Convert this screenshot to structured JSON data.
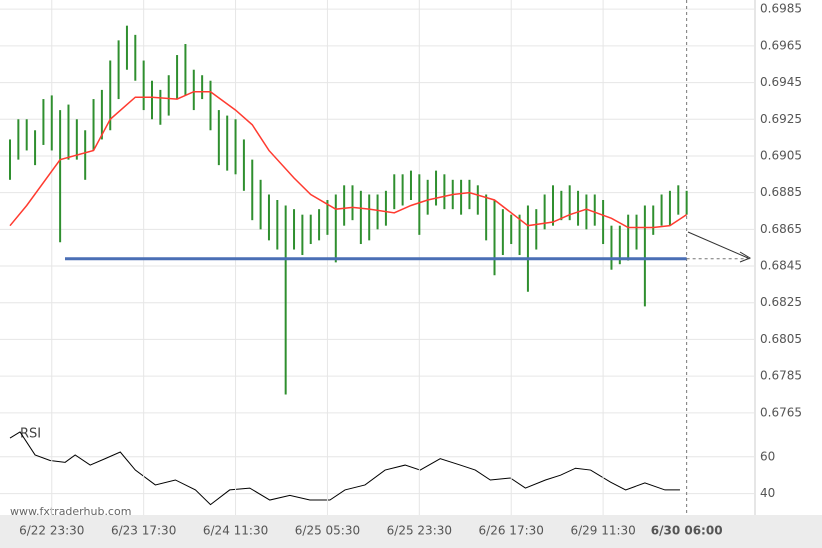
{
  "chart_data": [
    {
      "type": "range",
      "highs": [
        0.6914,
        0.6925,
        0.6925,
        0.6919,
        0.6936,
        0.6938,
        0.693,
        0.6933,
        0.6925,
        0.6919,
        0.6936,
        0.6941,
        0.6957,
        0.6968,
        0.6976,
        0.6971,
        0.6957,
        0.6946,
        0.6941,
        0.6949,
        0.696,
        0.6966,
        0.6952,
        0.6949,
        0.6946,
        0.693,
        0.6927,
        0.6925,
        0.6914,
        0.6903,
        0.6892,
        0.6884,
        0.6881,
        0.6878,
        0.6876,
        0.6873,
        0.6873,
        0.6876,
        0.6881,
        0.6884,
        0.6889,
        0.6889,
        0.6886,
        0.6884,
        0.6884,
        0.6886,
        0.6895,
        0.6895,
        0.6897,
        0.6895,
        0.6892,
        0.6897,
        0.6895,
        0.6892,
        0.6892,
        0.6892,
        0.6889,
        0.6884,
        0.6881,
        0.6876,
        0.6873,
        0.6873,
        0.6878,
        0.6876,
        0.6884,
        0.6889,
        0.6886,
        0.6889,
        0.6886,
        0.6884,
        0.6884,
        0.6881,
        0.6867,
        0.6867,
        0.6873,
        0.6873,
        0.6878,
        0.6878,
        0.6884,
        0.6886,
        0.6889,
        0.6886
      ],
      "lows": [
        0.6892,
        0.6903,
        0.6908,
        0.69,
        0.6911,
        0.6908,
        0.6858,
        0.6903,
        0.6903,
        0.6892,
        0.6908,
        0.6914,
        0.6919,
        0.6936,
        0.6952,
        0.6946,
        0.693,
        0.6925,
        0.6922,
        0.6927,
        0.6936,
        0.6938,
        0.693,
        0.6936,
        0.6919,
        0.69,
        0.6897,
        0.6895,
        0.6886,
        0.687,
        0.6865,
        0.6859,
        0.6854,
        0.6775,
        0.6854,
        0.6851,
        0.6857,
        0.6859,
        0.6862,
        0.6847,
        0.6867,
        0.687,
        0.6857,
        0.6859,
        0.6865,
        0.6867,
        0.6876,
        0.6878,
        0.6881,
        0.6862,
        0.6873,
        0.6878,
        0.6876,
        0.6876,
        0.6873,
        0.6876,
        0.6873,
        0.6859,
        0.684,
        0.6851,
        0.6857,
        0.6851,
        0.6831,
        0.6854,
        0.6865,
        0.6867,
        0.687,
        0.687,
        0.6867,
        0.6865,
        0.6867,
        0.6857,
        0.6843,
        0.6846,
        0.6848,
        0.6854,
        0.6823,
        0.6862,
        0.6867,
        0.6867,
        0.6873,
        0.6873
      ],
      "color": "#2f8f2f",
      "ma": {
        "color": "#ff3b30",
        "x": [
          0,
          2,
          6,
          10,
          12,
          15,
          17,
          20,
          22,
          24,
          27,
          29,
          31,
          34,
          36,
          39,
          41,
          43,
          46,
          48,
          50,
          53,
          55,
          58,
          60,
          62,
          65,
          67,
          69,
          72,
          74,
          77,
          79,
          81
        ],
        "values": [
          0.6867,
          0.6878,
          0.6903,
          0.6908,
          0.6925,
          0.6937,
          0.6937,
          0.6936,
          0.694,
          0.694,
          0.693,
          0.6922,
          0.6908,
          0.6893,
          0.6884,
          0.6876,
          0.6877,
          0.6876,
          0.6874,
          0.6878,
          0.6881,
          0.6884,
          0.6885,
          0.6881,
          0.6874,
          0.6867,
          0.6869,
          0.6873,
          0.6876,
          0.6871,
          0.6866,
          0.6866,
          0.6867,
          0.6873
        ]
      },
      "level": {
        "value": 0.6849,
        "color": "#4a6fb5"
      },
      "xlim": [
        0,
        82
      ],
      "xticks": [
        {
          "value": 5,
          "label": "6/22 23:30"
        },
        {
          "value": 16,
          "label": "6/23 17:30"
        },
        {
          "value": 27,
          "label": "6/24 11:30"
        },
        {
          "value": 38,
          "label": "6/25 05:30"
        },
        {
          "value": 49,
          "label": "6/25 23:30"
        },
        {
          "value": 60,
          "label": "6/26 17:30"
        },
        {
          "value": 71,
          "label": "6/29 11:30"
        },
        {
          "value": 81,
          "label": "6/30 06:00"
        }
      ],
      "ylim": [
        0.676,
        0.699
      ],
      "yticks": [
        0.6985,
        0.6965,
        0.6945,
        0.6925,
        0.6905,
        0.6885,
        0.6865,
        0.6845,
        0.6825,
        0.6805,
        0.6785,
        0.6765
      ],
      "grid": true
    },
    {
      "type": "line",
      "title": "RSI",
      "x": [
        0,
        1.2,
        3,
        4.8,
        6.6,
        7.8,
        9.6,
        11.4,
        13.2,
        15,
        17.4,
        19.8,
        22.2,
        24,
        26.3,
        28.7,
        31.1,
        33.5,
        35.9,
        38.3,
        40.1,
        42.5,
        44.9,
        47.3,
        49.1,
        51.5,
        53.9,
        55.7,
        57.5,
        59.9,
        61.7,
        64.1,
        65.9,
        67.7,
        69.5,
        71.9,
        73.7,
        76,
        78.4,
        80.2
      ],
      "values": [
        70.2,
        73.5,
        61,
        58,
        57,
        61,
        55.5,
        59,
        62.6,
        52.8,
        44.7,
        47.4,
        42,
        34,
        42,
        43,
        36.5,
        39,
        36.5,
        36.5,
        42,
        44.7,
        52.8,
        55.5,
        52.8,
        59,
        55.5,
        52.8,
        47.4,
        48.5,
        43,
        47.4,
        50,
        53.8,
        52.8,
        46.2,
        42,
        45.8,
        42,
        42
      ],
      "color": "#000000",
      "xlim": [
        0,
        82
      ],
      "ylim": [
        30,
        80
      ],
      "yticks": [
        60,
        40
      ]
    }
  ],
  "footer": "www.fxtraderhub.com"
}
